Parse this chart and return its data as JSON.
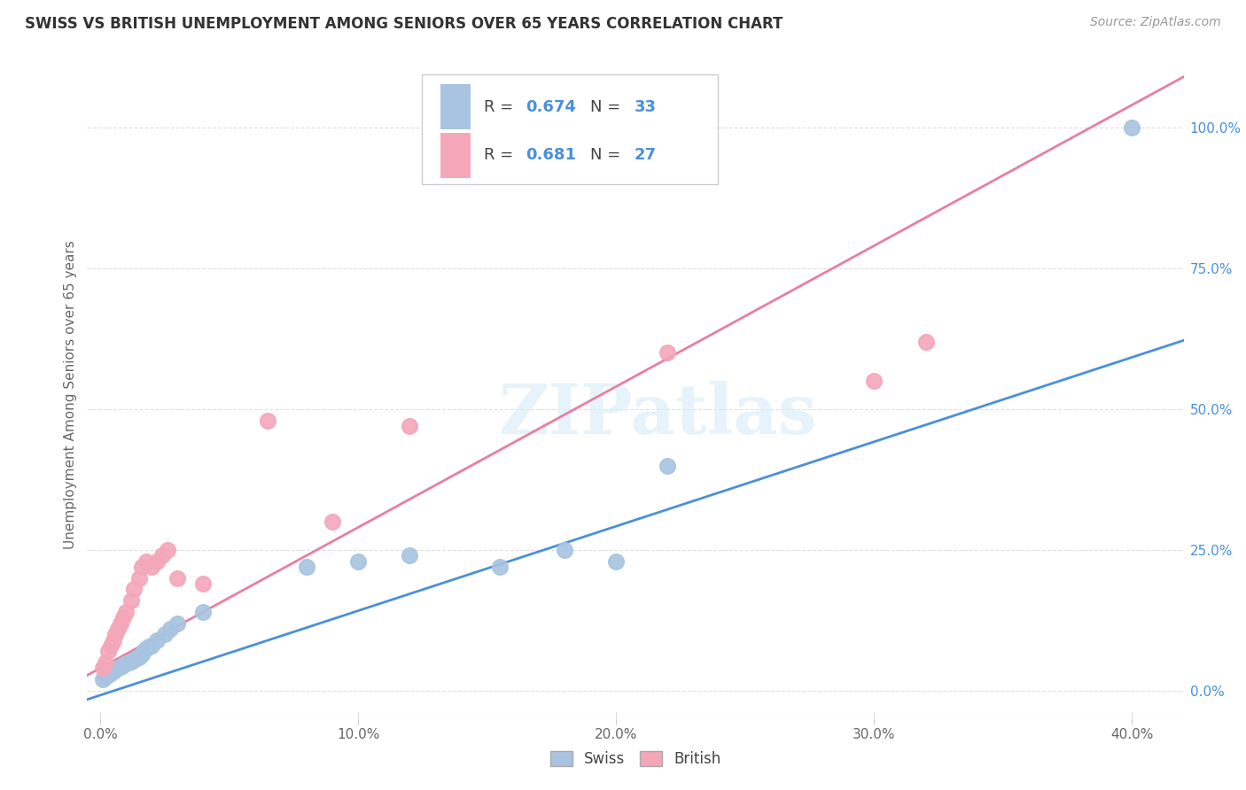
{
  "title": "SWISS VS BRITISH UNEMPLOYMENT AMONG SENIORS OVER 65 YEARS CORRELATION CHART",
  "source": "Source: ZipAtlas.com",
  "ylabel": "Unemployment Among Seniors over 65 years",
  "x_ticks": [
    0.0,
    0.1,
    0.2,
    0.3,
    0.4
  ],
  "x_tick_labels": [
    "0.0%",
    "10.0%",
    "20.0%",
    "30.0%",
    "40.0%"
  ],
  "y_ticks_right": [
    0.0,
    0.25,
    0.5,
    0.75,
    1.0
  ],
  "y_tick_labels_right": [
    "0.0%",
    "25.0%",
    "50.0%",
    "75.0%",
    "100.0%"
  ],
  "xlim": [
    -0.005,
    0.42
  ],
  "ylim": [
    -0.05,
    1.1
  ],
  "swiss_color": "#a8c4e0",
  "british_color": "#f4a7b9",
  "line_swiss_color": "#4a90d9",
  "line_british_color": "#e87fa0",
  "swiss_R": 0.674,
  "swiss_N": 33,
  "british_R": 0.681,
  "british_N": 27,
  "swiss_slope": 1.5,
  "swiss_intercept": -0.008,
  "british_slope": 2.5,
  "british_intercept": 0.04,
  "swiss_scatter_x": [
    0.001,
    0.002,
    0.003,
    0.004,
    0.005,
    0.006,
    0.007,
    0.008,
    0.009,
    0.01,
    0.011,
    0.012,
    0.013,
    0.014,
    0.015,
    0.016,
    0.017,
    0.018,
    0.019,
    0.02,
    0.022,
    0.025,
    0.027,
    0.03,
    0.04,
    0.08,
    0.1,
    0.12,
    0.155,
    0.18,
    0.2,
    0.22,
    0.4
  ],
  "swiss_scatter_y": [
    0.02,
    0.025,
    0.028,
    0.032,
    0.035,
    0.038,
    0.04,
    0.042,
    0.045,
    0.048,
    0.05,
    0.052,
    0.055,
    0.058,
    0.06,
    0.065,
    0.07,
    0.075,
    0.078,
    0.08,
    0.09,
    0.1,
    0.11,
    0.12,
    0.14,
    0.22,
    0.23,
    0.24,
    0.22,
    0.25,
    0.23,
    0.4,
    1.0
  ],
  "british_scatter_x": [
    0.001,
    0.002,
    0.003,
    0.004,
    0.005,
    0.006,
    0.007,
    0.008,
    0.009,
    0.01,
    0.012,
    0.013,
    0.015,
    0.016,
    0.018,
    0.02,
    0.022,
    0.024,
    0.026,
    0.03,
    0.04,
    0.065,
    0.09,
    0.12,
    0.22,
    0.3,
    0.32
  ],
  "british_scatter_y": [
    0.04,
    0.05,
    0.07,
    0.08,
    0.09,
    0.1,
    0.11,
    0.12,
    0.13,
    0.14,
    0.16,
    0.18,
    0.2,
    0.22,
    0.23,
    0.22,
    0.23,
    0.24,
    0.25,
    0.2,
    0.19,
    0.48,
    0.3,
    0.47,
    0.6,
    0.55,
    0.62
  ],
  "watermark": "ZIPatlas",
  "background_color": "#ffffff",
  "grid_color": "#e0e0e0"
}
